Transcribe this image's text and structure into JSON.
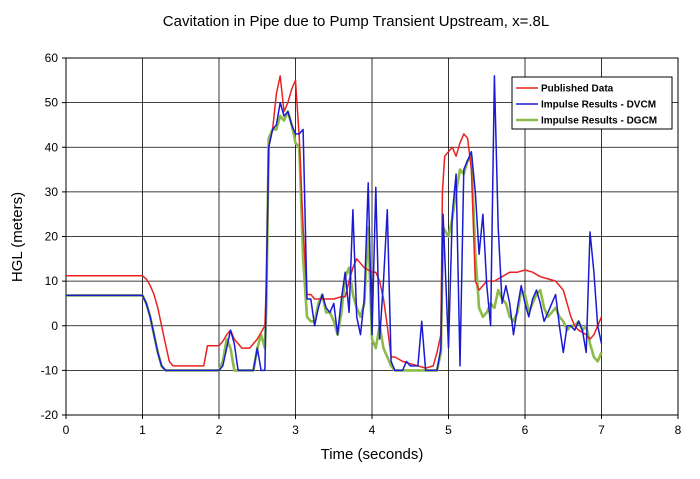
{
  "chart_data": {
    "type": "line",
    "title": "Cavitation in Pipe due to Pump Transient Upstream, x=.8L",
    "xlabel": "Time (seconds)",
    "ylabel": "HGL (meters)",
    "xlim": [
      0,
      8
    ],
    "ylim": [
      -20,
      60
    ],
    "xticks": [
      "0",
      "1",
      "2",
      "3",
      "4",
      "5",
      "6",
      "7",
      "8"
    ],
    "yticks": [
      "-20",
      "-10",
      "0",
      "10",
      "20",
      "30",
      "40",
      "50",
      "60"
    ],
    "grid": true,
    "legend_position": "top-right",
    "series": [
      {
        "name": "Published Data",
        "color": "#e8231f",
        "points": [
          [
            0,
            11.2
          ],
          [
            1.0,
            11.2
          ],
          [
            1.05,
            10.5
          ],
          [
            1.1,
            9
          ],
          [
            1.15,
            7
          ],
          [
            1.2,
            4
          ],
          [
            1.25,
            0
          ],
          [
            1.3,
            -4
          ],
          [
            1.35,
            -8
          ],
          [
            1.4,
            -9
          ],
          [
            1.8,
            -9
          ],
          [
            1.85,
            -4.5
          ],
          [
            2.0,
            -4.5
          ],
          [
            2.05,
            -3.5
          ],
          [
            2.1,
            -2
          ],
          [
            2.15,
            -1
          ],
          [
            2.2,
            -3
          ],
          [
            2.3,
            -5
          ],
          [
            2.4,
            -5
          ],
          [
            2.5,
            -3
          ],
          [
            2.6,
            0
          ],
          [
            2.62,
            10
          ],
          [
            2.65,
            40
          ],
          [
            2.7,
            44
          ],
          [
            2.75,
            52
          ],
          [
            2.8,
            56
          ],
          [
            2.85,
            48
          ],
          [
            2.9,
            50
          ],
          [
            2.95,
            53
          ],
          [
            3.0,
            55
          ],
          [
            3.05,
            42
          ],
          [
            3.1,
            22
          ],
          [
            3.15,
            7
          ],
          [
            3.2,
            7
          ],
          [
            3.25,
            6
          ],
          [
            3.3,
            6
          ],
          [
            3.4,
            6
          ],
          [
            3.5,
            6
          ],
          [
            3.6,
            6.5
          ],
          [
            3.65,
            6.5
          ],
          [
            3.7,
            10
          ],
          [
            3.75,
            13
          ],
          [
            3.8,
            15
          ],
          [
            3.85,
            14
          ],
          [
            3.9,
            13
          ],
          [
            4.0,
            12
          ],
          [
            4.05,
            12
          ],
          [
            4.1,
            10
          ],
          [
            4.15,
            6
          ],
          [
            4.2,
            0
          ],
          [
            4.25,
            -7
          ],
          [
            4.3,
            -7
          ],
          [
            4.4,
            -8
          ],
          [
            4.5,
            -8.5
          ],
          [
            4.6,
            -9
          ],
          [
            4.7,
            -9.5
          ],
          [
            4.8,
            -9
          ],
          [
            4.85,
            -6
          ],
          [
            4.9,
            -2
          ],
          [
            4.92,
            30
          ],
          [
            4.95,
            38
          ],
          [
            5.0,
            39
          ],
          [
            5.05,
            40
          ],
          [
            5.1,
            38
          ],
          [
            5.15,
            41
          ],
          [
            5.2,
            43
          ],
          [
            5.25,
            42
          ],
          [
            5.3,
            35
          ],
          [
            5.35,
            10
          ],
          [
            5.4,
            8
          ],
          [
            5.45,
            9
          ],
          [
            5.5,
            10
          ],
          [
            5.6,
            10
          ],
          [
            5.7,
            11
          ],
          [
            5.8,
            12
          ],
          [
            5.9,
            12
          ],
          [
            6.0,
            12.5
          ],
          [
            6.1,
            12
          ],
          [
            6.2,
            11
          ],
          [
            6.3,
            10.5
          ],
          [
            6.4,
            10
          ],
          [
            6.5,
            8
          ],
          [
            6.55,
            5
          ],
          [
            6.6,
            2
          ],
          [
            6.65,
            0
          ],
          [
            6.7,
            -1
          ],
          [
            6.8,
            -2
          ],
          [
            6.85,
            -3
          ],
          [
            6.9,
            -2
          ],
          [
            6.95,
            0
          ],
          [
            7.0,
            2
          ]
        ]
      },
      {
        "name": "Impulse Results - DVCM",
        "color": "#1a1ad2",
        "points": [
          [
            0,
            6.8
          ],
          [
            1.0,
            6.8
          ],
          [
            1.05,
            5
          ],
          [
            1.1,
            2
          ],
          [
            1.15,
            -2
          ],
          [
            1.2,
            -6
          ],
          [
            1.25,
            -9
          ],
          [
            1.3,
            -10
          ],
          [
            2.0,
            -10
          ],
          [
            2.05,
            -9
          ],
          [
            2.1,
            -5
          ],
          [
            2.15,
            -1
          ],
          [
            2.2,
            -4
          ],
          [
            2.25,
            -10
          ],
          [
            2.45,
            -10
          ],
          [
            2.5,
            -5
          ],
          [
            2.55,
            -10
          ],
          [
            2.6,
            -10
          ],
          [
            2.62,
            10
          ],
          [
            2.65,
            40
          ],
          [
            2.7,
            44
          ],
          [
            2.75,
            45
          ],
          [
            2.8,
            50
          ],
          [
            2.85,
            47
          ],
          [
            2.9,
            48
          ],
          [
            2.95,
            45
          ],
          [
            3.0,
            43
          ],
          [
            3.05,
            43
          ],
          [
            3.1,
            44
          ],
          [
            3.15,
            6
          ],
          [
            3.2,
            6
          ],
          [
            3.25,
            0
          ],
          [
            3.3,
            4
          ],
          [
            3.35,
            7
          ],
          [
            3.4,
            4
          ],
          [
            3.45,
            3
          ],
          [
            3.5,
            5
          ],
          [
            3.55,
            -2
          ],
          [
            3.6,
            6
          ],
          [
            3.65,
            12
          ],
          [
            3.7,
            3
          ],
          [
            3.75,
            26
          ],
          [
            3.8,
            2
          ],
          [
            3.85,
            -2
          ],
          [
            3.9,
            6
          ],
          [
            3.95,
            32
          ],
          [
            4.0,
            -2
          ],
          [
            4.05,
            31
          ],
          [
            4.1,
            -3
          ],
          [
            4.15,
            10
          ],
          [
            4.2,
            26
          ],
          [
            4.25,
            -8
          ],
          [
            4.3,
            -10
          ],
          [
            4.4,
            -10
          ],
          [
            4.45,
            -8
          ],
          [
            4.5,
            -9
          ],
          [
            4.6,
            -9
          ],
          [
            4.65,
            1
          ],
          [
            4.7,
            -10
          ],
          [
            4.85,
            -10
          ],
          [
            4.9,
            -5
          ],
          [
            4.93,
            25
          ],
          [
            5.0,
            -5
          ],
          [
            5.05,
            25
          ],
          [
            5.1,
            34
          ],
          [
            5.15,
            -9
          ],
          [
            5.2,
            35
          ],
          [
            5.25,
            37
          ],
          [
            5.3,
            39
          ],
          [
            5.35,
            30
          ],
          [
            5.4,
            16
          ],
          [
            5.45,
            25
          ],
          [
            5.5,
            9
          ],
          [
            5.55,
            0
          ],
          [
            5.6,
            56
          ],
          [
            5.65,
            22
          ],
          [
            5.7,
            5
          ],
          [
            5.75,
            9
          ],
          [
            5.8,
            5
          ],
          [
            5.85,
            -2
          ],
          [
            5.9,
            4
          ],
          [
            5.95,
            9
          ],
          [
            6.0,
            5
          ],
          [
            6.05,
            2
          ],
          [
            6.1,
            6
          ],
          [
            6.15,
            8
          ],
          [
            6.2,
            5
          ],
          [
            6.25,
            1
          ],
          [
            6.3,
            3
          ],
          [
            6.35,
            5
          ],
          [
            6.4,
            7
          ],
          [
            6.45,
            0
          ],
          [
            6.5,
            -6
          ],
          [
            6.55,
            0
          ],
          [
            6.6,
            0
          ],
          [
            6.65,
            -1
          ],
          [
            6.7,
            1
          ],
          [
            6.75,
            -1
          ],
          [
            6.8,
            -6
          ],
          [
            6.85,
            21
          ],
          [
            6.9,
            12
          ],
          [
            6.95,
            0
          ],
          [
            7.0,
            -4
          ]
        ]
      },
      {
        "name": "Impulse Results - DGCM",
        "color": "#8cbb4a",
        "points": [
          [
            0,
            6.8
          ],
          [
            1.0,
            6.8
          ],
          [
            1.05,
            5
          ],
          [
            1.1,
            2
          ],
          [
            1.15,
            -2
          ],
          [
            1.2,
            -6
          ],
          [
            1.25,
            -9
          ],
          [
            1.3,
            -10
          ],
          [
            2.0,
            -10
          ],
          [
            2.05,
            -8
          ],
          [
            2.1,
            -3
          ],
          [
            2.15,
            -5
          ],
          [
            2.2,
            -10
          ],
          [
            2.45,
            -10
          ],
          [
            2.5,
            -5
          ],
          [
            2.55,
            -2
          ],
          [
            2.6,
            -5
          ],
          [
            2.62,
            5
          ],
          [
            2.65,
            42
          ],
          [
            2.7,
            44
          ],
          [
            2.75,
            44
          ],
          [
            2.8,
            47
          ],
          [
            2.85,
            46
          ],
          [
            2.9,
            48
          ],
          [
            2.95,
            45
          ],
          [
            3.0,
            41
          ],
          [
            3.05,
            40
          ],
          [
            3.1,
            15
          ],
          [
            3.15,
            2
          ],
          [
            3.2,
            1
          ],
          [
            3.25,
            1
          ],
          [
            3.3,
            5
          ],
          [
            3.35,
            7
          ],
          [
            3.4,
            3
          ],
          [
            3.45,
            3
          ],
          [
            3.5,
            1
          ],
          [
            3.55,
            -2
          ],
          [
            3.6,
            3
          ],
          [
            3.65,
            11
          ],
          [
            3.7,
            13
          ],
          [
            3.75,
            7
          ],
          [
            3.8,
            4
          ],
          [
            3.85,
            2
          ],
          [
            3.9,
            5
          ],
          [
            3.95,
            22
          ],
          [
            4.0,
            -3
          ],
          [
            4.05,
            -5
          ],
          [
            4.1,
            0
          ],
          [
            4.15,
            -5
          ],
          [
            4.2,
            -7
          ],
          [
            4.25,
            -9
          ],
          [
            4.3,
            -10
          ],
          [
            4.85,
            -10
          ],
          [
            4.9,
            -6
          ],
          [
            4.93,
            22
          ],
          [
            5.0,
            20
          ],
          [
            5.05,
            24
          ],
          [
            5.1,
            30
          ],
          [
            5.15,
            35
          ],
          [
            5.2,
            34
          ],
          [
            5.25,
            37
          ],
          [
            5.3,
            38
          ],
          [
            5.35,
            16
          ],
          [
            5.4,
            4
          ],
          [
            5.45,
            2
          ],
          [
            5.5,
            3
          ],
          [
            5.55,
            5
          ],
          [
            5.6,
            4
          ],
          [
            5.65,
            8
          ],
          [
            5.7,
            6
          ],
          [
            5.75,
            5
          ],
          [
            5.8,
            2
          ],
          [
            5.85,
            1
          ],
          [
            5.9,
            3
          ],
          [
            5.95,
            8
          ],
          [
            6.0,
            7
          ],
          [
            6.05,
            3
          ],
          [
            6.1,
            5
          ],
          [
            6.15,
            7
          ],
          [
            6.2,
            8
          ],
          [
            6.25,
            4
          ],
          [
            6.3,
            2
          ],
          [
            6.35,
            3
          ],
          [
            6.4,
            4
          ],
          [
            6.45,
            2
          ],
          [
            6.5,
            1
          ],
          [
            6.55,
            -1
          ],
          [
            6.6,
            0
          ],
          [
            6.65,
            0
          ],
          [
            6.7,
            1
          ],
          [
            6.75,
            -1
          ],
          [
            6.8,
            0
          ],
          [
            6.85,
            -4
          ],
          [
            6.9,
            -7
          ],
          [
            6.95,
            -8
          ],
          [
            7.0,
            -6
          ]
        ]
      }
    ]
  }
}
